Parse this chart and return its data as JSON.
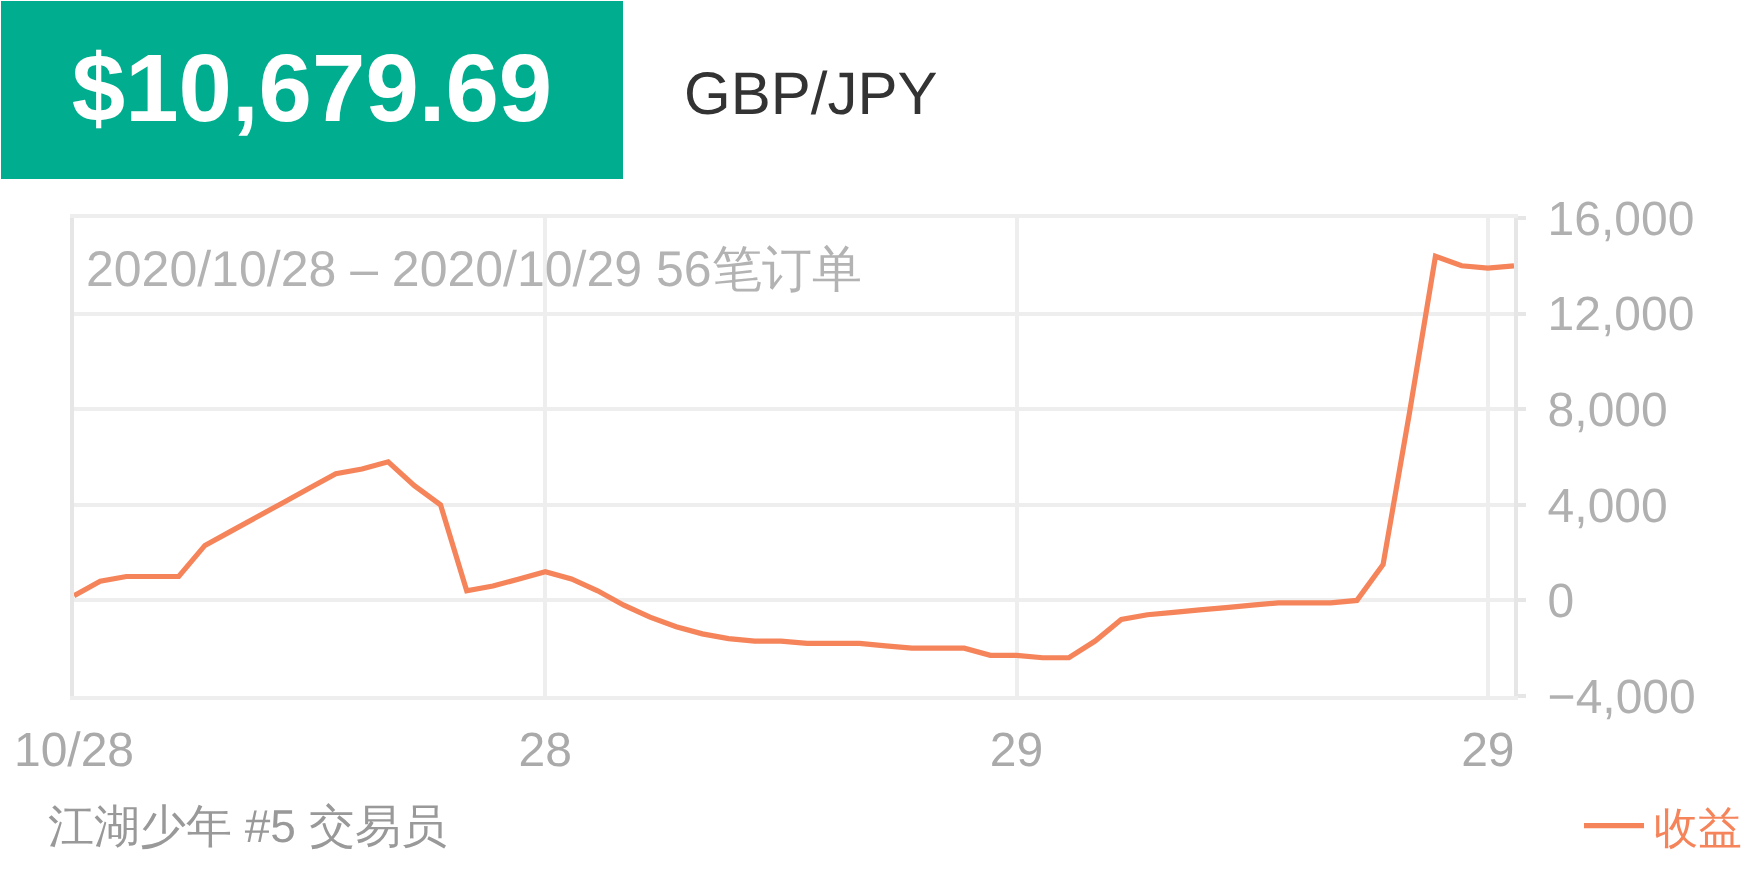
{
  "chart_data": {
    "type": "line",
    "title": "$10,679.69",
    "subtitle": "GBP/JPY",
    "annotations": [
      "2020/10/28 – 2020/10/29 56笔订单",
      "江湖少年 #5 交易员"
    ],
    "categories": [
      "10/28",
      null,
      null,
      null,
      null,
      null,
      null,
      null,
      null,
      null,
      null,
      null,
      null,
      null,
      null,
      null,
      null,
      null,
      "28",
      null,
      null,
      null,
      null,
      null,
      null,
      null,
      null,
      null,
      null,
      null,
      null,
      null,
      null,
      null,
      null,
      null,
      "29",
      null,
      null,
      null,
      null,
      null,
      null,
      null,
      null,
      null,
      null,
      null,
      null,
      null,
      null,
      null,
      null,
      null,
      "29",
      null
    ],
    "series": [
      {
        "name": "收益",
        "color": "#f5845a",
        "values": [
          200,
          800,
          1000,
          1000,
          1000,
          2300,
          2900,
          3500,
          4100,
          4700,
          5300,
          5500,
          5800,
          4800,
          4000,
          400,
          600,
          900,
          1200,
          900,
          400,
          -200,
          -700,
          -1100,
          -1400,
          -1600,
          -1700,
          -1700,
          -1800,
          -1800,
          -1800,
          -1900,
          -2000,
          -2000,
          -2000,
          -2300,
          -2300,
          -2400,
          -2400,
          -1700,
          -800,
          -600,
          -500,
          -400,
          -300,
          -200,
          -100,
          -100,
          -100,
          0,
          1500,
          7800,
          14400,
          14000,
          13900,
          14000
        ]
      }
    ],
    "ylim": [
      -4000,
      16000
    ],
    "yticks": [
      {
        "value": -4000,
        "label": "−4,000"
      },
      0,
      {
        "value": 4000,
        "label": "4,000"
      },
      {
        "value": 8000,
        "label": "8,000"
      },
      {
        "value": 12000,
        "label": "12,000"
      },
      {
        "value": 16000,
        "label": "16,000"
      }
    ],
    "grid": true,
    "legend": "bottom right",
    "line_style": "solid"
  }
}
